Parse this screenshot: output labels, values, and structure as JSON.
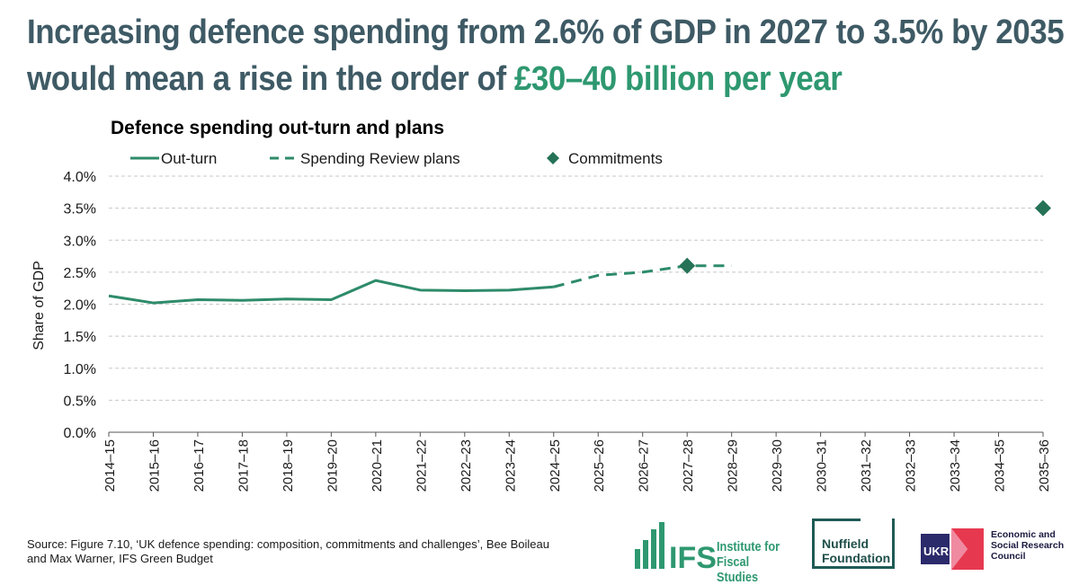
{
  "headline": {
    "line1": "Increasing defence spending from 2.6% of GDP in 2027 to 3.5% by 2035",
    "line2_prefix": "would mean a rise in the order of ",
    "line2_accent": "£30–40 billion per year"
  },
  "chart_data": {
    "type": "line",
    "title": "Defence spending out-turn and plans",
    "ylabel": "Share of GDP",
    "xlabel": "",
    "ylim": [
      0,
      0.04
    ],
    "yticks": [
      "0.0%",
      "0.5%",
      "1.0%",
      "1.5%",
      "2.0%",
      "2.5%",
      "3.0%",
      "3.5%",
      "4.0%"
    ],
    "grid": true,
    "legend_position": "top",
    "categories": [
      "2014–15",
      "2015–16",
      "2016–17",
      "2017–18",
      "2018–19",
      "2019–20",
      "2020–21",
      "2021–22",
      "2022–23",
      "2023–24",
      "2024–25",
      "2025–26",
      "2026–27",
      "2027–28",
      "2028–29",
      "2029–30",
      "2030–31",
      "2031–32",
      "2032–33",
      "2033–34",
      "2034–35",
      "2035–36"
    ],
    "series": [
      {
        "name": "Out-turn",
        "style": "solid",
        "points": [
          {
            "x": "2014–15",
            "y": 0.0213
          },
          {
            "x": "2015–16",
            "y": 0.0202
          },
          {
            "x": "2016–17",
            "y": 0.0207
          },
          {
            "x": "2017–18",
            "y": 0.0206
          },
          {
            "x": "2018–19",
            "y": 0.0208
          },
          {
            "x": "2019–20",
            "y": 0.0207
          },
          {
            "x": "2020–21",
            "y": 0.0237
          },
          {
            "x": "2021–22",
            "y": 0.0222
          },
          {
            "x": "2022–23",
            "y": 0.0221
          },
          {
            "x": "2023–24",
            "y": 0.0222
          },
          {
            "x": "2024–25",
            "y": 0.0227
          }
        ]
      },
      {
        "name": "Spending Review plans",
        "style": "dashed",
        "points": [
          {
            "x": "2024–25",
            "y": 0.0227
          },
          {
            "x": "2025–26",
            "y": 0.0245
          },
          {
            "x": "2026–27",
            "y": 0.025
          },
          {
            "x": "2027–28",
            "y": 0.026
          },
          {
            "x": "2028–29",
            "y": 0.026
          }
        ]
      },
      {
        "name": "Commitments",
        "style": "markers",
        "points": [
          {
            "x": "2027–28",
            "y": 0.026
          },
          {
            "x": "2035–36",
            "y": 0.035
          }
        ]
      }
    ]
  },
  "colors": {
    "headline": "#3e5a65",
    "accent": "#2e9870",
    "series": "#2e8b6a",
    "commitment_marker": "#257256",
    "grid": "#c8c8c8"
  },
  "source": "Source: Figure 7.10, ‘UK defence spending: composition, commitments and challenges’, Bee Boileau and Max Warner, IFS Green Budget",
  "logos": {
    "ifs_mark": "IFS",
    "ifs_name": "Institute for Fiscal Studies",
    "nuffield": "Nuffield Foundation",
    "ukri_mark": "UKRI",
    "esrc": "Economic and Social Research Council"
  }
}
